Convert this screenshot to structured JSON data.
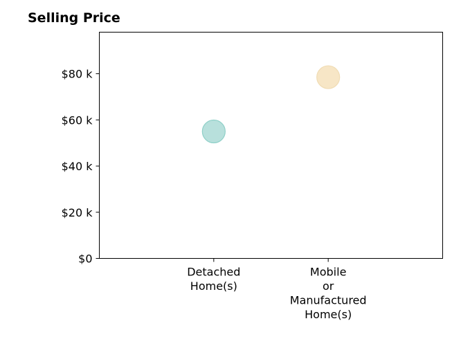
{
  "chart_data": {
    "type": "scatter",
    "title": "Selling Price",
    "xlabel": "",
    "ylabel": "",
    "categories": [
      "Detached\nHome(s)",
      "Mobile\nor\nManufactured\nHome(s)"
    ],
    "values": [
      55000,
      78500
    ],
    "colors": [
      "#b8e0dc",
      "#f7e6c6"
    ],
    "edge_colors": [
      "#8fd0c8",
      "#f0dcb4"
    ],
    "ylim": [
      0,
      98000
    ],
    "yticks": [
      0,
      20000,
      40000,
      60000,
      80000
    ],
    "ytick_labels": [
      "$0",
      "$20 k",
      "$40 k",
      "$60 k",
      "$80 k"
    ],
    "grid": false,
    "legend": "none"
  }
}
